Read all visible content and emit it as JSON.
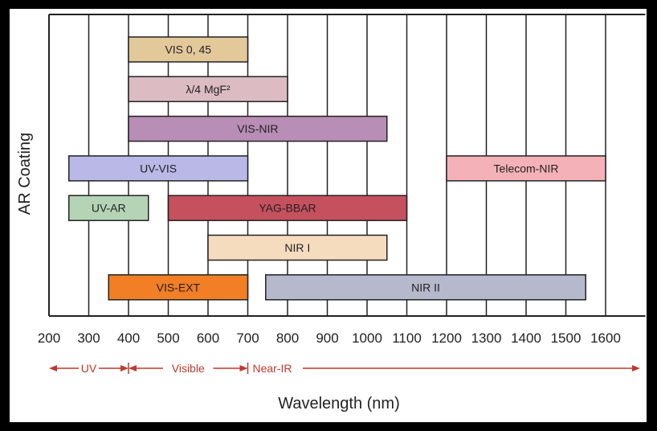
{
  "chart_data": {
    "type": "bar",
    "orientation": "horizontal-range",
    "xlabel": "Wavelength (nm)",
    "ylabel": "AR Coating",
    "xlim": [
      200,
      1700
    ],
    "x_ticks": [
      200,
      300,
      400,
      500,
      600,
      700,
      800,
      900,
      1000,
      1100,
      1200,
      1300,
      1400,
      1500,
      1600
    ],
    "grid": "vertical",
    "series": [
      {
        "name": "VIS 0, 45",
        "start": 400,
        "end": 700,
        "row": 0,
        "color": "#e3c89a"
      },
      {
        "name": "λ/4 MgF²",
        "start": 400,
        "end": 800,
        "row": 1,
        "color": "#dcbcc2"
      },
      {
        "name": "VIS-NIR",
        "start": 400,
        "end": 1050,
        "row": 2,
        "color": "#b88db6"
      },
      {
        "name": "UV-VIS",
        "start": 250,
        "end": 700,
        "row": 3,
        "color": "#b9b8e6"
      },
      {
        "name": "Telecom-NIR",
        "start": 1200,
        "end": 1600,
        "row": 3,
        "color": "#f4b1b7"
      },
      {
        "name": "UV-AR",
        "start": 250,
        "end": 450,
        "row": 4,
        "color": "#b5d4b5"
      },
      {
        "name": "YAG-BBAR",
        "start": 500,
        "end": 1100,
        "row": 4,
        "color": "#c5505e"
      },
      {
        "name": "NIR I",
        "start": 600,
        "end": 1050,
        "row": 5,
        "color": "#f6dcbf"
      },
      {
        "name": "VIS-EXT",
        "start": 350,
        "end": 700,
        "row": 6,
        "color": "#f27e26"
      },
      {
        "name": "NIR II",
        "start": 745,
        "end": 1550,
        "row": 6,
        "color": "#b6b8cc"
      }
    ],
    "regions": [
      {
        "label": "UV",
        "start": 200,
        "end": 400
      },
      {
        "label": "Visible",
        "start": 400,
        "end": 700
      },
      {
        "label": "Near-IR",
        "start": 700,
        "end": 1700
      }
    ],
    "colors": {
      "grid": "#222222",
      "region": "#c0392b"
    }
  }
}
